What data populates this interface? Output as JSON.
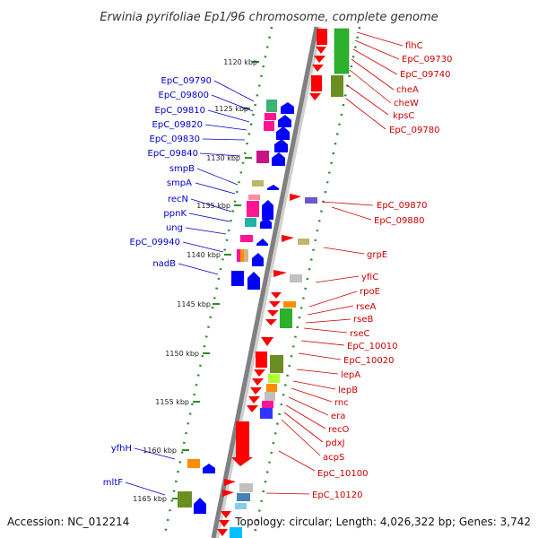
{
  "title": "Erwinia pyrifoliae Ep1/96 chromosome, complete genome",
  "footer": {
    "accession": "Accession: NC_012214",
    "summary": "Topology: circular; Length: 4,026,322 bp; Genes: 3,742"
  },
  "scale_labels": [
    "1120 kbp",
    "1125 kbp",
    "1130 kbp",
    "1135 kbp",
    "1140 kbp",
    "1145 kbp",
    "1150 kbp",
    "1155 kbp",
    "1160 kbp",
    "1165 kbp"
  ],
  "left_labels": [
    "EpC_09790",
    "EpC_09800",
    "EpC_09810",
    "EpC_09820",
    "EpC_09830",
    "EpC_09840",
    "smpB",
    "smpA",
    "recN",
    "ppnK",
    "ung",
    "EpC_09940",
    "nadB",
    "yfhH",
    "mltF"
  ],
  "right_labels": [
    "flhC",
    "EpC_09730",
    "EpC_09740",
    "cheA",
    "cheW",
    "kpsC",
    "EpC_09780",
    "EpC_09870",
    "EpC_09880",
    "grpE",
    "yfiC",
    "rpoE",
    "rseA",
    "rseB",
    "rseC",
    "EpC_10010",
    "EpC_10020",
    "lepA",
    "lepB",
    "rnc",
    "era",
    "recO",
    "pdxJ",
    "acpS",
    "EpC_10100",
    "EpC_10120"
  ],
  "colors": {
    "left_label": "#0000cc",
    "right_label": "#cc0000",
    "backbone": "#808080",
    "tick": "#2e8b2e"
  }
}
